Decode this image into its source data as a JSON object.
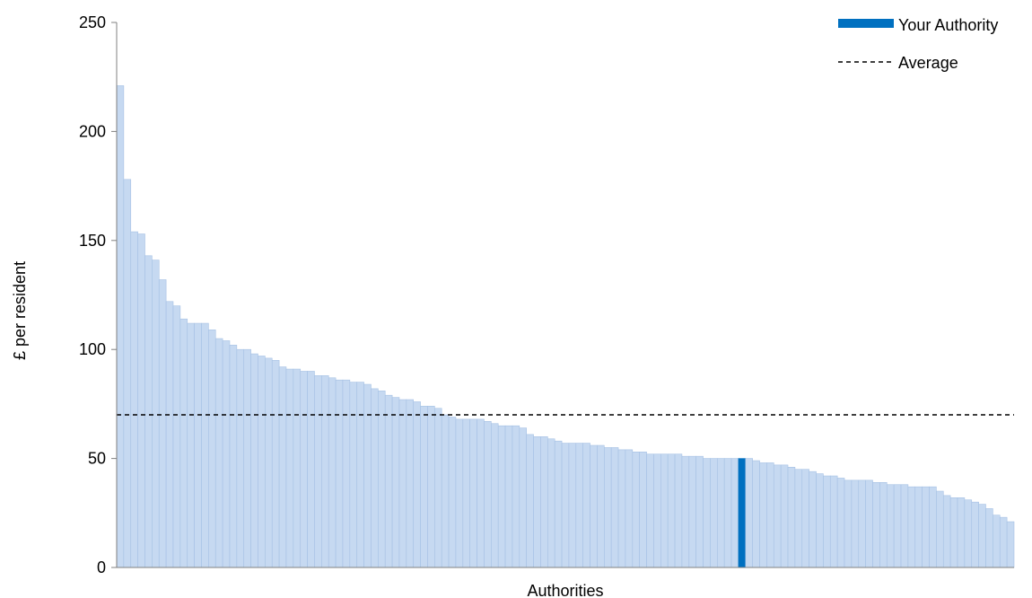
{
  "chart_data": {
    "type": "bar",
    "xlabel": "Authorities",
    "ylabel": "£ per resident",
    "ylim": [
      0,
      250
    ],
    "yticks": [
      0,
      50,
      100,
      150,
      200,
      250
    ],
    "grid": false,
    "legend": {
      "placement": "top-right"
    },
    "average": 70,
    "highlight_index": 88,
    "colors": {
      "bar": "#c6d9f1",
      "bar_edge": "#a6c1e4",
      "highlight": "#0070c0",
      "average_line": "#000000"
    },
    "series": [
      {
        "name": "Your Authority",
        "role": "highlight"
      },
      {
        "name": "Average",
        "role": "average"
      }
    ],
    "values": [
      221,
      178,
      154,
      153,
      143,
      141,
      132,
      122,
      120,
      114,
      112,
      112,
      112,
      109,
      105,
      104,
      102,
      100,
      100,
      98,
      97,
      96,
      95,
      92,
      91,
      91,
      90,
      90,
      88,
      88,
      87,
      86,
      86,
      85,
      85,
      84,
      82,
      81,
      79,
      78,
      77,
      77,
      76,
      74,
      74,
      73,
      70,
      69,
      68,
      68,
      68,
      68,
      67,
      66,
      65,
      65,
      65,
      64,
      61,
      60,
      60,
      59,
      58,
      57,
      57,
      57,
      57,
      56,
      56,
      55,
      55,
      54,
      54,
      53,
      53,
      52,
      52,
      52,
      52,
      52,
      51,
      51,
      51,
      50,
      50,
      50,
      50,
      50,
      50,
      50,
      49,
      48,
      48,
      47,
      47,
      46,
      45,
      45,
      44,
      43,
      42,
      42,
      41,
      40,
      40,
      40,
      40,
      39,
      39,
      38,
      38,
      38,
      37,
      37,
      37,
      37,
      35,
      33,
      32,
      32,
      31,
      30,
      29,
      27,
      24,
      23,
      21
    ]
  }
}
